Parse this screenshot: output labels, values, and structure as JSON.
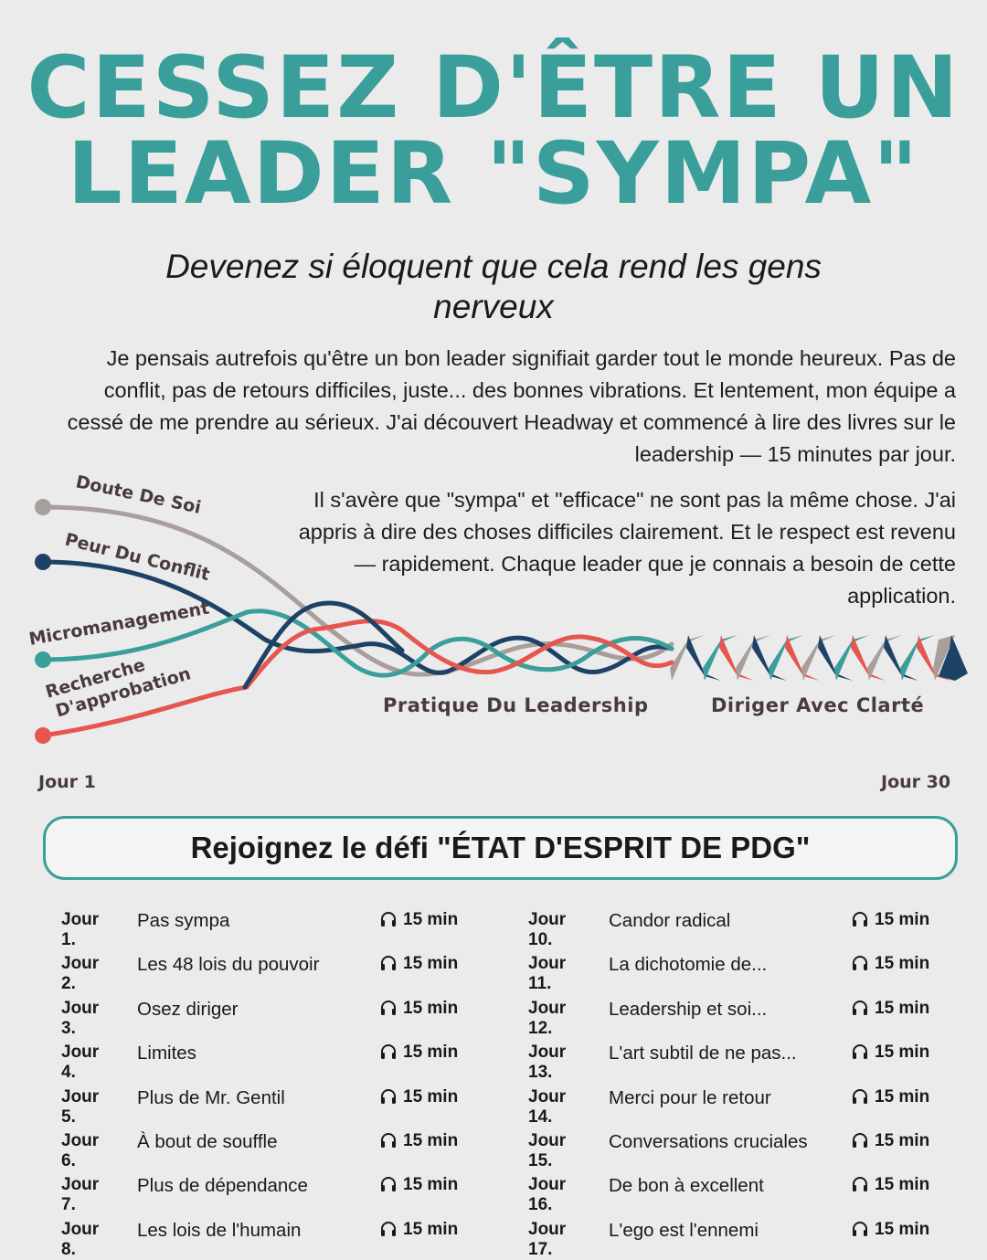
{
  "headline": {
    "line1": "CESSEZ D'ÊTRE UN",
    "line2": "LEADER \"SYMPA\""
  },
  "subtitle": "Devenez si éloquent que cela rend les gens nerveux",
  "paragraph1": "Je pensais autrefois qu'être un bon leader signifiait garder tout le monde heureux. Pas de conflit, pas de retours difficiles, juste... des bonnes vibrations. Et lentement, mon équipe a cessé de me prendre au sérieux. J'ai découvert Headway et commencé à lire des livres sur le leadership — 15 minutes par jour.",
  "paragraph2": "Il s'avère que \"sympa\" et \"efficace\" ne sont pas la même chose. J'ai appris à dire des choses difficiles clairement. Et le respect est revenu — rapidement. Chaque leader que je connais a besoin de cette application.",
  "diagram": {
    "strands": [
      {
        "label": "Doute De Soi",
        "color": "#a89e9b"
      },
      {
        "label": "Peur Du Conflit",
        "color": "#1d4266"
      },
      {
        "label": "Micromanagement",
        "color": "#3a9f9a"
      },
      {
        "label": "Recherche D'approbation",
        "color": "#e5564f"
      }
    ],
    "stage1": "Pratique Du Leadership",
    "stage2": "Diriger Avec Clarté",
    "start_label": "Jour 1",
    "end_label": "Jour 30"
  },
  "challenge_title": "Rejoignez le défi \"ÉTAT D'ESPRIT DE PDG\"",
  "days_left": [
    {
      "day": "Jour 1.",
      "title": "Pas sympa",
      "duration": "15 min"
    },
    {
      "day": "Jour 2.",
      "title": "Les 48 lois du pouvoir",
      "duration": "15 min"
    },
    {
      "day": "Jour 3.",
      "title": "Osez diriger",
      "duration": "15 min"
    },
    {
      "day": "Jour 4.",
      "title": "Limites",
      "duration": "15 min"
    },
    {
      "day": "Jour 5.",
      "title": "Plus de Mr. Gentil",
      "duration": "15 min"
    },
    {
      "day": "Jour 6.",
      "title": "À bout de souffle",
      "duration": "15 min"
    },
    {
      "day": "Jour 7.",
      "title": "Plus de dépendance",
      "duration": "15 min"
    },
    {
      "day": "Jour 8.",
      "title": "Les lois de l'humain",
      "duration": "15 min"
    }
  ],
  "days_right": [
    {
      "day": "Jour 10.",
      "title": "Candor radical",
      "duration": "15 min"
    },
    {
      "day": "Jour 11.",
      "title": "La dichotomie de...",
      "duration": "15 min"
    },
    {
      "day": "Jour 12.",
      "title": "Leadership et soi...",
      "duration": "15 min"
    },
    {
      "day": "Jour 13.",
      "title": "L'art subtil de ne pas...",
      "duration": "15 min"
    },
    {
      "day": "Jour 14.",
      "title": "Merci pour le retour",
      "duration": "15 min"
    },
    {
      "day": "Jour 15.",
      "title": "Conversations cruciales",
      "duration": "15 min"
    },
    {
      "day": "Jour 16.",
      "title": "De bon à excellent",
      "duration": "15 min"
    },
    {
      "day": "Jour 17.",
      "title": "L'ego est l'ennemi",
      "duration": "15 min"
    }
  ],
  "icons": {
    "duration": "headphones-icon",
    "strand_start": "dot-icon"
  }
}
